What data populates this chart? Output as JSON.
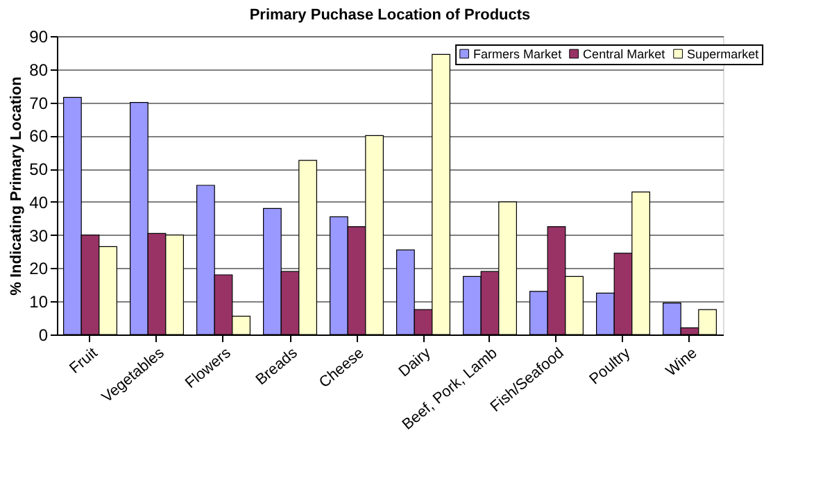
{
  "chart_data": {
    "type": "bar",
    "title": "Primary Puchase Location of Products",
    "ylabel": "% Indicating Primary Location",
    "categories": [
      "Fruit",
      "Vegetables",
      "Flowers",
      "Breads",
      "Cheese",
      "Dairy",
      "Beef, Pork, Lamb",
      "Fish/Seafood",
      "Poultry",
      "Wine"
    ],
    "series": [
      {
        "name": "Farmers Market",
        "color": "#9999ff",
        "values": [
          71.5,
          70,
          45,
          38,
          35.5,
          25.5,
          17.5,
          13,
          12.5,
          9.5
        ]
      },
      {
        "name": "Central Market",
        "color": "#993366",
        "values": [
          30,
          30.5,
          18,
          19,
          32.5,
          7.5,
          19,
          32.5,
          24.5,
          2
        ]
      },
      {
        "name": "Supermarket",
        "color": "#ffffcc",
        "values": [
          26.5,
          30,
          5.5,
          52.5,
          60,
          84.5,
          40,
          17.5,
          43,
          7.5
        ]
      }
    ],
    "ylim": [
      0,
      90
    ],
    "yticks": [
      0,
      10,
      20,
      30,
      40,
      50,
      60,
      70,
      80,
      90
    ],
    "grid": "y",
    "legend": "top right"
  }
}
